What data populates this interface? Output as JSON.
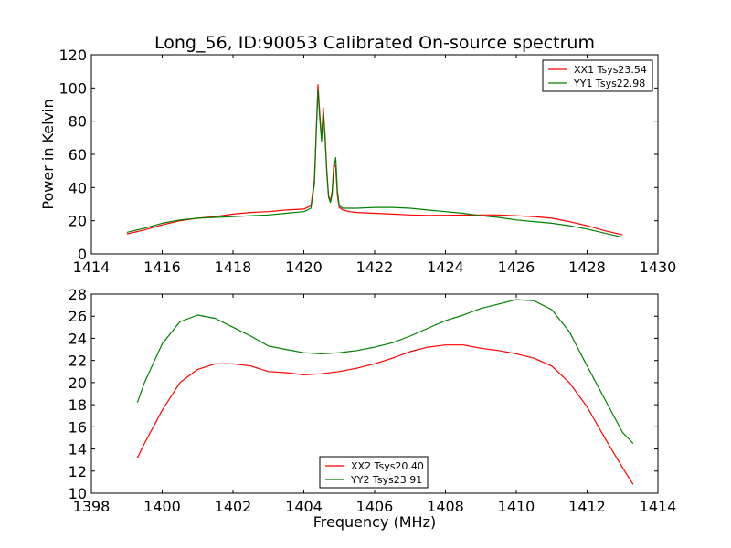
{
  "title": "Long_56, ID:90053 Calibrated On-source spectrum",
  "chart_data": [
    {
      "type": "line",
      "ylabel": "Power in Kelvin",
      "xlabel": "",
      "xlim": [
        1414,
        1430
      ],
      "ylim": [
        0,
        120
      ],
      "xticks": [
        1414,
        1416,
        1418,
        1420,
        1422,
        1424,
        1426,
        1428,
        1430
      ],
      "yticks": [
        0,
        20,
        40,
        60,
        80,
        100,
        120
      ],
      "legend_position": "top-right",
      "series": [
        {
          "name": "XX1 Tsys23.54",
          "color": "#ff0000",
          "x": [
            1415.0,
            1415.5,
            1416.0,
            1416.5,
            1417.0,
            1417.5,
            1418.0,
            1418.5,
            1419.0,
            1419.5,
            1420.0,
            1420.2,
            1420.3,
            1420.35,
            1420.4,
            1420.45,
            1420.5,
            1420.55,
            1420.6,
            1420.65,
            1420.7,
            1420.75,
            1420.8,
            1420.85,
            1420.9,
            1420.95,
            1421.0,
            1421.1,
            1421.3,
            1421.5,
            1422.0,
            1422.5,
            1423.0,
            1423.5,
            1424.0,
            1424.5,
            1425.0,
            1425.5,
            1426.0,
            1426.5,
            1427.0,
            1427.5,
            1428.0,
            1428.5,
            1429.0
          ],
          "y": [
            12,
            14.5,
            17.5,
            20,
            21.5,
            22.5,
            24,
            25,
            25.5,
            26.5,
            27,
            29,
            45,
            75,
            102,
            85,
            70,
            88,
            72,
            50,
            35,
            32,
            38,
            55,
            52,
            35,
            28,
            26.5,
            25.5,
            25,
            24.5,
            24,
            23.5,
            23.2,
            23.3,
            23.4,
            23.5,
            23.5,
            23,
            22.5,
            21.5,
            19.5,
            17,
            14,
            11.5
          ]
        },
        {
          "name": "YY1 Tsys22.98",
          "color": "#008000",
          "x": [
            1415.0,
            1415.5,
            1416.0,
            1416.5,
            1417.0,
            1417.5,
            1418.0,
            1418.5,
            1419.0,
            1419.5,
            1420.0,
            1420.2,
            1420.3,
            1420.35,
            1420.4,
            1420.45,
            1420.5,
            1420.55,
            1420.6,
            1420.65,
            1420.7,
            1420.75,
            1420.8,
            1420.85,
            1420.9,
            1420.95,
            1421.0,
            1421.1,
            1421.3,
            1421.5,
            1422.0,
            1422.5,
            1423.0,
            1423.5,
            1424.0,
            1424.5,
            1425.0,
            1425.5,
            1426.0,
            1426.5,
            1427.0,
            1427.5,
            1428.0,
            1428.5,
            1429.0
          ],
          "y": [
            13,
            15.5,
            18.5,
            20.5,
            21.5,
            22,
            22.5,
            23,
            23.5,
            24.5,
            25.5,
            27.5,
            42,
            72,
            99,
            82,
            68,
            85,
            70,
            48,
            34,
            31,
            36,
            52,
            58,
            38,
            29,
            27.5,
            27.5,
            27.5,
            28,
            28,
            27.5,
            26.5,
            25.5,
            24.5,
            23,
            22,
            20.5,
            19.5,
            18.5,
            17,
            15,
            12.5,
            10
          ]
        }
      ]
    },
    {
      "type": "line",
      "xlabel": "Frequency (MHz)",
      "ylabel": "",
      "xlim": [
        1398,
        1414
      ],
      "ylim": [
        10,
        28
      ],
      "xticks": [
        1398,
        1400,
        1402,
        1404,
        1406,
        1408,
        1410,
        1412,
        1414
      ],
      "yticks": [
        10,
        12,
        14,
        16,
        18,
        20,
        22,
        24,
        26,
        28
      ],
      "legend_position": "bottom-center",
      "series": [
        {
          "name": "XX2 Tsys20.40",
          "color": "#ff0000",
          "x": [
            1399.3,
            1399.5,
            1400.0,
            1400.5,
            1401.0,
            1401.5,
            1402.0,
            1402.5,
            1403.0,
            1403.5,
            1404.0,
            1404.5,
            1405.0,
            1405.5,
            1406.0,
            1406.5,
            1407.0,
            1407.5,
            1408.0,
            1408.5,
            1409.0,
            1409.5,
            1410.0,
            1410.5,
            1411.0,
            1411.5,
            1412.0,
            1412.5,
            1413.0,
            1413.3
          ],
          "y": [
            13.2,
            14.5,
            17.5,
            20,
            21.2,
            21.7,
            21.7,
            21.5,
            21,
            20.9,
            20.7,
            20.8,
            21,
            21.3,
            21.7,
            22.2,
            22.8,
            23.2,
            23.4,
            23.4,
            23.1,
            22.9,
            22.6,
            22.2,
            21.5,
            20,
            17.8,
            15,
            12.3,
            10.8
          ]
        },
        {
          "name": "YY2 Tsys23.91",
          "color": "#008000",
          "x": [
            1399.3,
            1399.5,
            1400.0,
            1400.5,
            1401.0,
            1401.5,
            1402.0,
            1402.5,
            1403.0,
            1403.5,
            1404.0,
            1404.5,
            1405.0,
            1405.5,
            1406.0,
            1406.5,
            1407.0,
            1407.5,
            1408.0,
            1408.5,
            1409.0,
            1409.5,
            1410.0,
            1410.5,
            1411.0,
            1411.5,
            1412.0,
            1412.5,
            1413.0,
            1413.3
          ],
          "y": [
            18.2,
            20,
            23.5,
            25.5,
            26.1,
            25.8,
            25,
            24.2,
            23.3,
            23,
            22.7,
            22.6,
            22.7,
            22.9,
            23.2,
            23.6,
            24.2,
            24.9,
            25.6,
            26.1,
            26.7,
            27.1,
            27.5,
            27.4,
            26.6,
            24.6,
            21.5,
            18.5,
            15.5,
            14.5
          ]
        }
      ]
    }
  ]
}
